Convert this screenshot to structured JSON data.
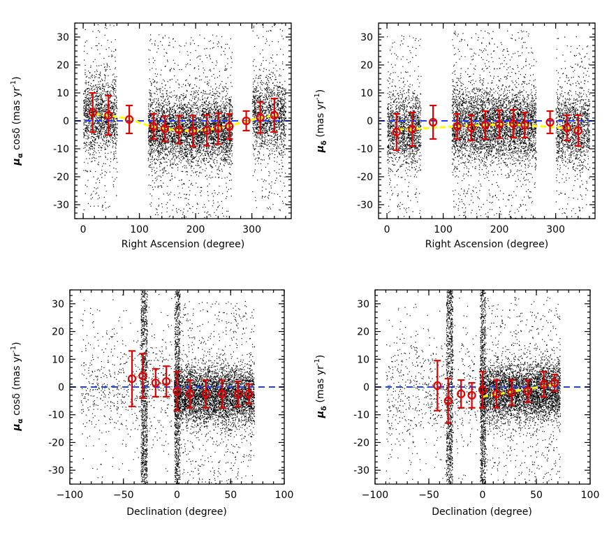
{
  "chart_data": [
    {
      "type": "scatter",
      "panel": "top-left",
      "xlabel": "Right Ascension (degree)",
      "ylabel": "μ_α cosδ (mas yr⁻¹)",
      "ylabel_parts": {
        "symbol": "μ",
        "sub": "α",
        "rest": "cosδ (mas yr",
        "sup": "-1",
        "close": ")"
      },
      "xlim": [
        -15,
        370
      ],
      "ylim": [
        -35,
        35
      ],
      "xticks": [
        0,
        100,
        200,
        300
      ],
      "xtick_labels": [
        "0",
        "100",
        "200",
        "300"
      ],
      "yticks": [
        -30,
        -20,
        -10,
        0,
        10,
        20,
        30
      ],
      "ytick_labels": [
        "-30",
        "-20",
        "-10",
        "0",
        "10",
        "20",
        "30"
      ],
      "reference_line": {
        "y": 0,
        "color": "#1f3fff",
        "style": "dashed"
      },
      "scatter_clusters": [
        {
          "x_range": [
            0,
            60
          ],
          "y_center": 2,
          "y_spread": 9,
          "count": 1500
        },
        {
          "x_range": [
            115,
            265
          ],
          "y_center": -3,
          "y_spread": 8,
          "count": 4500
        },
        {
          "x_range": [
            300,
            360
          ],
          "y_center": 2,
          "y_spread": 9,
          "count": 1400
        }
      ],
      "fit_curve": {
        "color": "#ffff00",
        "x": [
          20,
          40,
          60,
          80,
          120,
          140,
          160,
          180,
          200,
          220,
          240,
          260,
          290,
          310,
          330,
          345
        ],
        "y": [
          2.5,
          2,
          1.4,
          0.8,
          -2,
          -2.6,
          -3.2,
          -3.6,
          -3.6,
          -3.2,
          -2.6,
          -1.8,
          -0.2,
          0.8,
          1.6,
          2
        ]
      },
      "means": {
        "x": [
          17,
          45,
          82,
          125,
          145,
          170,
          195,
          220,
          240,
          260,
          290,
          315,
          340
        ],
        "y": [
          3,
          2,
          0.5,
          -2,
          -2.8,
          -3.2,
          -3.6,
          -3.4,
          -2.8,
          -2,
          0,
          1.2,
          2
        ],
        "err": [
          7,
          7,
          5,
          4.5,
          4.5,
          5,
          5.5,
          5.5,
          5.5,
          4.5,
          3.5,
          5.5,
          6
        ]
      }
    },
    {
      "type": "scatter",
      "panel": "top-right",
      "xlabel": "Right Ascension (degree)",
      "ylabel": "μ_δ (mas yr⁻¹)",
      "ylabel_parts": {
        "symbol": "μ",
        "sub": "δ",
        "rest": "(mas yr",
        "sup": "-1",
        "close": ")"
      },
      "xlim": [
        -15,
        370
      ],
      "ylim": [
        -35,
        35
      ],
      "xticks": [
        0,
        100,
        200,
        300
      ],
      "xtick_labels": [
        "0",
        "100",
        "200",
        "300"
      ],
      "yticks": [
        -30,
        -20,
        -10,
        0,
        10,
        20,
        30
      ],
      "ytick_labels": [
        "-30",
        "-20",
        "-10",
        "0",
        "10",
        "20",
        "30"
      ],
      "reference_line": {
        "y": 0,
        "color": "#1f3fff",
        "style": "dashed"
      },
      "scatter_clusters": [
        {
          "x_range": [
            0,
            60
          ],
          "y_center": -3,
          "y_spread": 9,
          "count": 1500
        },
        {
          "x_range": [
            115,
            265
          ],
          "y_center": -1.5,
          "y_spread": 9,
          "count": 4500
        },
        {
          "x_range": [
            300,
            360
          ],
          "y_center": -3,
          "y_spread": 9,
          "count": 1400
        }
      ],
      "fit_curve": {
        "color": "#ffff00",
        "x": [
          20,
          45,
          80,
          125,
          145,
          170,
          200,
          225,
          245,
          265,
          290,
          320,
          345
        ],
        "y": [
          -3,
          -3,
          -2.5,
          -2,
          -1.8,
          -1.5,
          -1.3,
          -1.3,
          -1.5,
          -1.8,
          -2.2,
          -2.6,
          -3
        ]
      },
      "means": {
        "x": [
          17,
          45,
          82,
          125,
          150,
          175,
          200,
          225,
          245,
          290,
          320,
          340
        ],
        "y": [
          -4,
          -3,
          -0.5,
          -2,
          -2.5,
          -1.5,
          -1.2,
          -1,
          -1.5,
          -0.5,
          -2.5,
          -3.5
        ],
        "err": [
          6.5,
          6,
          6,
          4.5,
          4.5,
          5,
          5,
          5,
          4.5,
          4,
          4.5,
          5.5
        ]
      }
    },
    {
      "type": "scatter",
      "panel": "bottom-left",
      "xlabel": "Declination (degree)",
      "ylabel": "μ_α cosδ (mas yr⁻¹)",
      "ylabel_parts": {
        "symbol": "μ",
        "sub": "α",
        "rest": "cosδ (mas yr",
        "sup": "-1",
        "close": ")"
      },
      "xlim": [
        -100,
        100
      ],
      "ylim": [
        -35,
        35
      ],
      "xticks": [
        -100,
        -50,
        0,
        50,
        100
      ],
      "xtick_labels": [
        "−100",
        "−50",
        "0",
        "50",
        "100"
      ],
      "yticks": [
        -30,
        -20,
        -10,
        0,
        10,
        20,
        30
      ],
      "ytick_labels": [
        "-30",
        "-20",
        "-10",
        "0",
        "10",
        "20",
        "30"
      ],
      "reference_line": {
        "y": 0,
        "color": "#1f3fff",
        "style": "dashed"
      },
      "scatter_clusters": [
        {
          "x_range": [
            -3,
            72
          ],
          "y_center": -3,
          "y_spread": 7,
          "count": 5000
        },
        {
          "x_range": [
            -90,
            -5
          ],
          "y_center": 0,
          "y_spread": 14,
          "count": 700
        }
      ],
      "vertical_stripes": [
        {
          "x": -31,
          "width": 3,
          "count": 900
        },
        {
          "x": 0,
          "width": 2.5,
          "count": 700
        }
      ],
      "fit_curve": {
        "color": "#ffff00",
        "x": [],
        "y": []
      },
      "means": {
        "x": [
          -42,
          -32,
          -20,
          -10,
          0,
          12,
          27,
          42,
          57,
          67
        ],
        "y": [
          3,
          4,
          1.5,
          2,
          -1.5,
          -2.5,
          -2.5,
          -2.5,
          -2.5,
          -2.5
        ],
        "err": [
          10,
          8,
          5,
          5.5,
          7,
          5,
          5,
          5,
          4.5,
          3.5
        ]
      }
    },
    {
      "type": "scatter",
      "panel": "bottom-right",
      "xlabel": "Declination (degree)",
      "ylabel": "μ_δ (mas yr⁻¹)",
      "ylabel_parts": {
        "symbol": "μ",
        "sub": "δ",
        "rest": "(mas yr",
        "sup": "-1",
        "close": ")"
      },
      "xlim": [
        -100,
        100
      ],
      "ylim": [
        -35,
        35
      ],
      "xticks": [
        -100,
        -50,
        0,
        50,
        100
      ],
      "xtick_labels": [
        "−100",
        "−50",
        "0",
        "50",
        "100"
      ],
      "yticks": [
        -30,
        -20,
        -10,
        0,
        10,
        20,
        30
      ],
      "ytick_labels": [
        "-30",
        "-20",
        "-10",
        "0",
        "10",
        "20",
        "30"
      ],
      "reference_line": {
        "y": 0,
        "color": "#1f3fff",
        "style": "dashed"
      },
      "scatter_clusters": [
        {
          "x_range": [
            -3,
            72
          ],
          "y_center": -1.5,
          "y_spread": 7,
          "count": 5000
        },
        {
          "x_range": [
            -90,
            -5
          ],
          "y_center": -1,
          "y_spread": 14,
          "count": 700
        }
      ],
      "vertical_stripes": [
        {
          "x": -31,
          "width": 3,
          "count": 900
        },
        {
          "x": 0,
          "width": 2.5,
          "count": 700
        }
      ],
      "fit_curve": {
        "color": "#ffff00",
        "x": [
          0,
          15,
          30,
          45,
          60,
          70
        ],
        "y": [
          -3.5,
          -2.5,
          -1.5,
          -0.5,
          0.5,
          1
        ]
      },
      "means": {
        "x": [
          -42,
          -32,
          -20,
          -10,
          0,
          13,
          27,
          42,
          57,
          67
        ],
        "y": [
          0.5,
          -5,
          -2.5,
          -3,
          -1,
          -2.5,
          -2,
          -1.5,
          1,
          1.5
        ],
        "err": [
          9,
          8,
          5,
          4.5,
          6.5,
          5,
          4.5,
          4,
          4.5,
          3
        ]
      }
    }
  ]
}
